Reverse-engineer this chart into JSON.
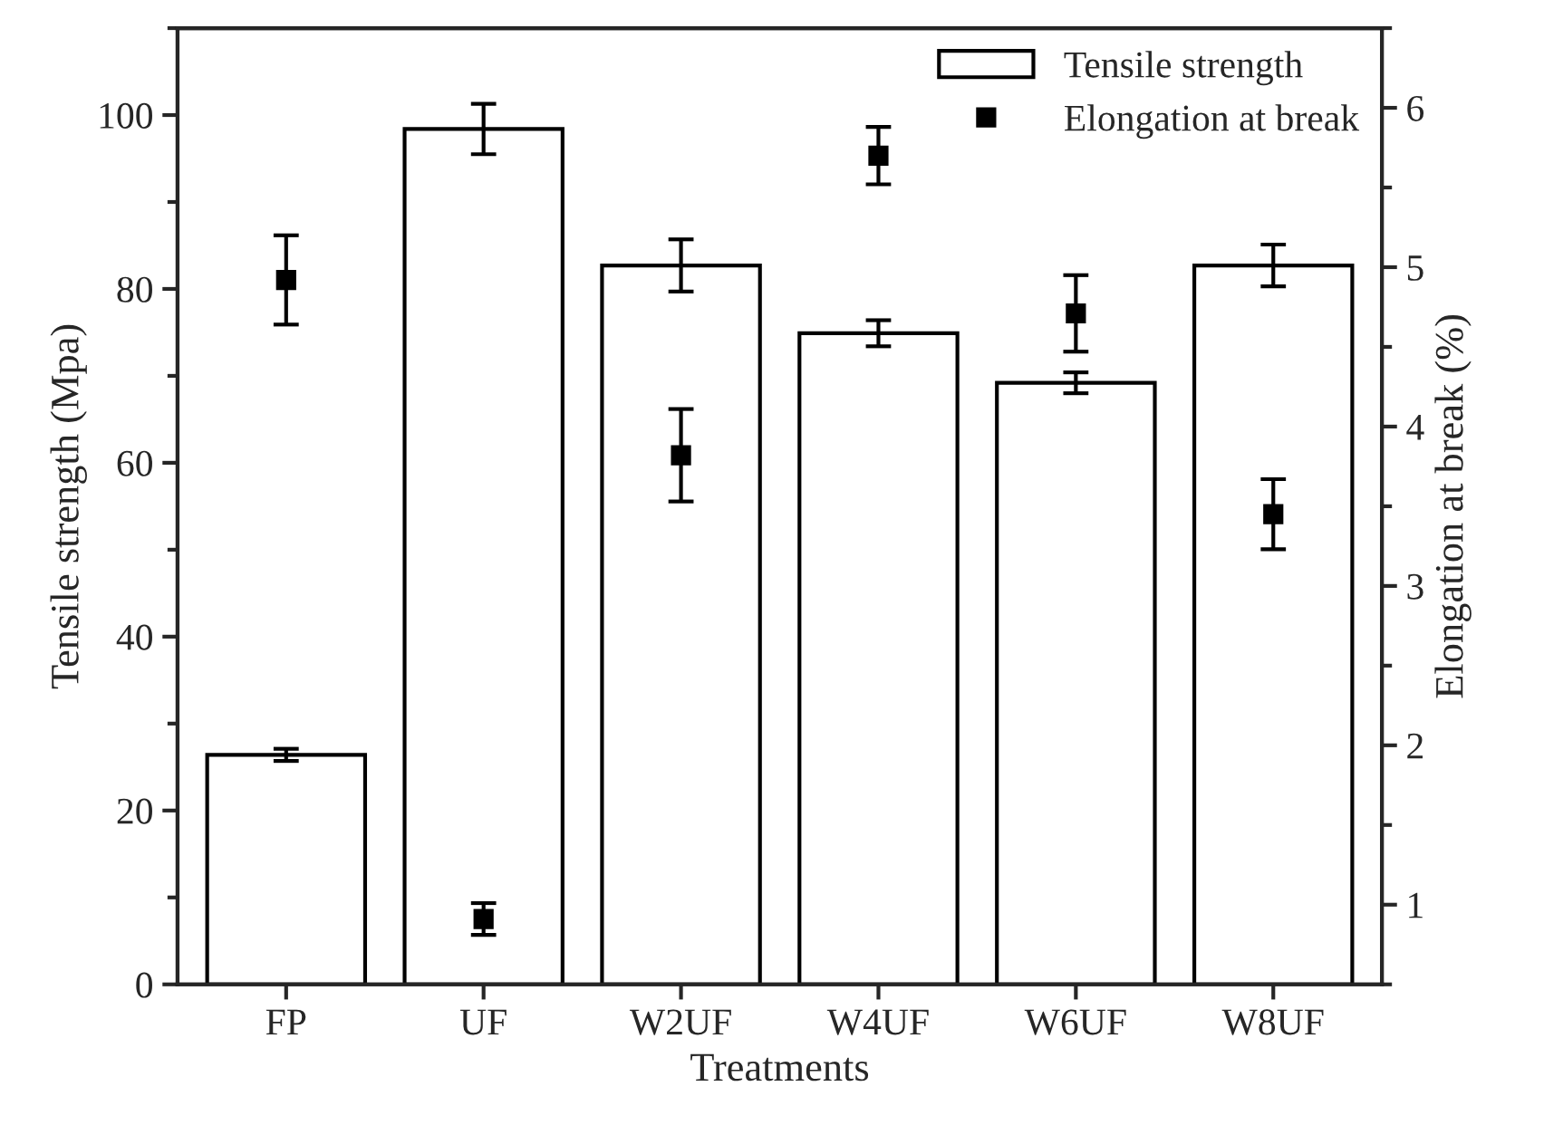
{
  "chart_data": {
    "type": "bar",
    "xlabel": "Treatments",
    "ylabel": "Tensile strength (Mpa)",
    "y2label": "Elongation at break (%)",
    "categories": [
      "FP",
      "UF",
      "W2UF",
      "W4UF",
      "W6UF",
      "W8UF"
    ],
    "series": [
      {
        "name": "Tensile strength",
        "color": "#ffffff",
        "values": [
          26.4,
          98.4,
          82.7,
          74.9,
          69.2,
          82.7
        ],
        "errors": [
          0.7,
          2.9,
          3.0,
          1.5,
          1.2,
          2.4
        ]
      },
      {
        "name": "Elongation at break",
        "type": "scatter",
        "axis": "y2",
        "color": "#000000",
        "marker": "square",
        "values": [
          4.92,
          0.91,
          3.82,
          5.7,
          4.71,
          3.45
        ],
        "errors": [
          0.28,
          0.1,
          0.29,
          0.18,
          0.24,
          0.22
        ]
      }
    ],
    "ylim": [
      0,
      110
    ],
    "yticks": [
      0,
      20,
      40,
      60,
      80,
      100
    ],
    "y2lim": [
      0.5,
      6.5
    ],
    "y2ticks": [
      1,
      2,
      3,
      4,
      5,
      6
    ],
    "grid": false,
    "legend": "top right"
  }
}
